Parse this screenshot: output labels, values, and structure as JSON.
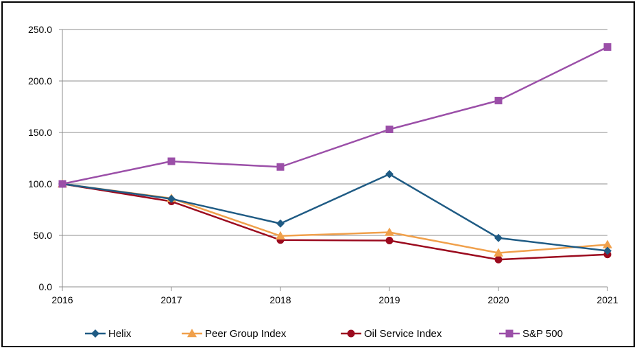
{
  "chart_data": {
    "type": "line",
    "title": "",
    "xlabel": "",
    "ylabel": "",
    "x": [
      "2016",
      "2017",
      "2018",
      "2019",
      "2020",
      "2021"
    ],
    "ylim": [
      0,
      250
    ],
    "yticks": [
      "0.0",
      "50.0",
      "100.0",
      "150.0",
      "200.0",
      "250.0"
    ],
    "grid": "horizontal",
    "legend_position": "bottom",
    "series": [
      {
        "name": "Helix",
        "color": "#1f5b84",
        "marker": "diamond",
        "values": [
          100,
          85.5,
          61.5,
          109.5,
          47.5,
          35
        ]
      },
      {
        "name": "Peer Group Index",
        "color": "#f0a04b",
        "marker": "triangle",
        "values": [
          100,
          86,
          49.5,
          53,
          33,
          41
        ]
      },
      {
        "name": "Oil Service Index",
        "color": "#9b0a1e",
        "marker": "circle",
        "values": [
          100,
          83,
          45.5,
          45,
          26.5,
          31.5
        ]
      },
      {
        "name": "S&P 500",
        "color": "#9b4fa8",
        "marker": "square",
        "values": [
          100,
          122,
          116.5,
          153,
          181,
          233
        ]
      }
    ]
  }
}
